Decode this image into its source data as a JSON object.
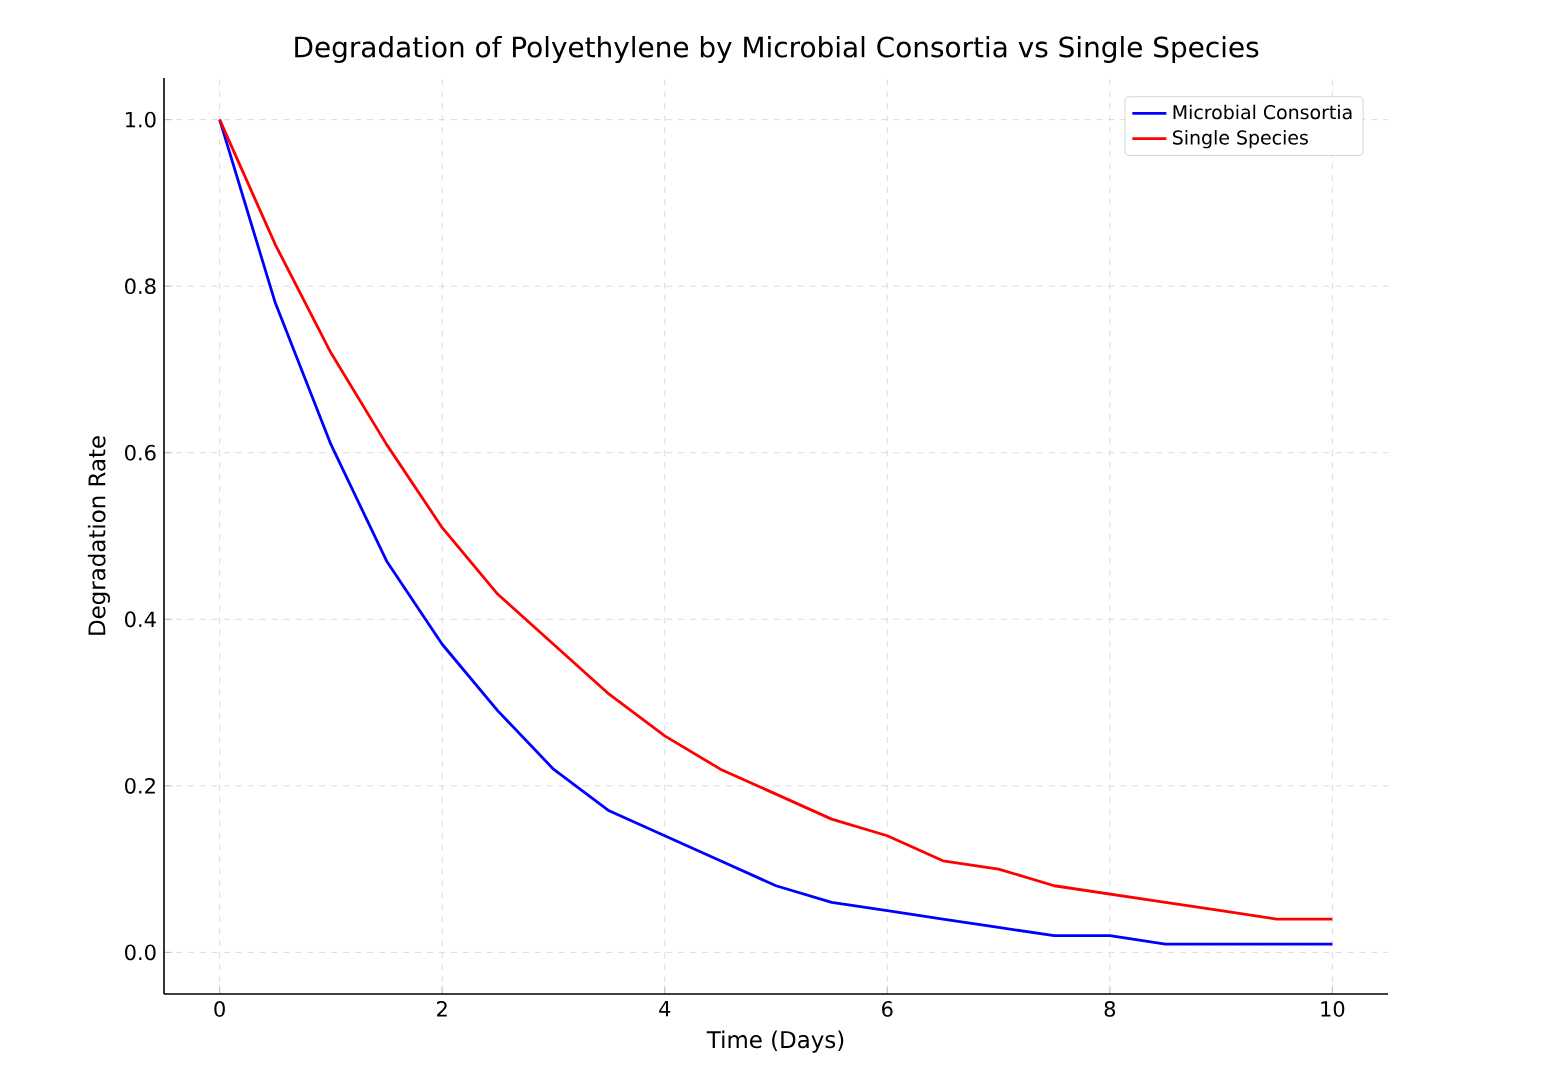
{
  "chart_data": {
    "type": "line",
    "title": "Degradation of Polyethylene by Microbial Consortia vs Single Species",
    "xlabel": "Time (Days)",
    "ylabel": "Degradation Rate",
    "x": [
      0,
      0.5,
      1,
      1.5,
      2,
      2.5,
      3,
      3.5,
      4,
      4.5,
      5,
      5.5,
      6,
      6.5,
      7,
      7.5,
      8,
      8.5,
      9,
      9.5,
      10
    ],
    "series": [
      {
        "name": "Microbial Consortia",
        "color": "#0000ff",
        "values": [
          1.0,
          0.78,
          0.61,
          0.47,
          0.37,
          0.29,
          0.22,
          0.17,
          0.14,
          0.11,
          0.08,
          0.06,
          0.05,
          0.04,
          0.03,
          0.02,
          0.02,
          0.01,
          0.01,
          0.01,
          0.01
        ]
      },
      {
        "name": "Single Species",
        "color": "#ff0000",
        "values": [
          1.0,
          0.85,
          0.72,
          0.61,
          0.51,
          0.43,
          0.37,
          0.31,
          0.26,
          0.22,
          0.19,
          0.16,
          0.14,
          0.11,
          0.1,
          0.08,
          0.07,
          0.06,
          0.05,
          0.04,
          0.04
        ]
      }
    ],
    "xlim": [
      -0.5,
      10.5
    ],
    "ylim": [
      -0.05,
      1.05
    ],
    "xticks": [
      0,
      2,
      4,
      6,
      8,
      10
    ],
    "yticks": [
      {
        "value": 0,
        "label": "0.0"
      },
      {
        "value": 0.2,
        "label": "0.2"
      },
      {
        "value": 0.4,
        "label": "0.4"
      },
      {
        "value": 0.6,
        "label": "0.6"
      },
      {
        "value": 0.8,
        "label": "0.8"
      },
      {
        "value": 1.0,
        "label": "1.0"
      }
    ],
    "grid": true,
    "legend": "top right",
    "marker": "none",
    "line_style": "solid"
  }
}
